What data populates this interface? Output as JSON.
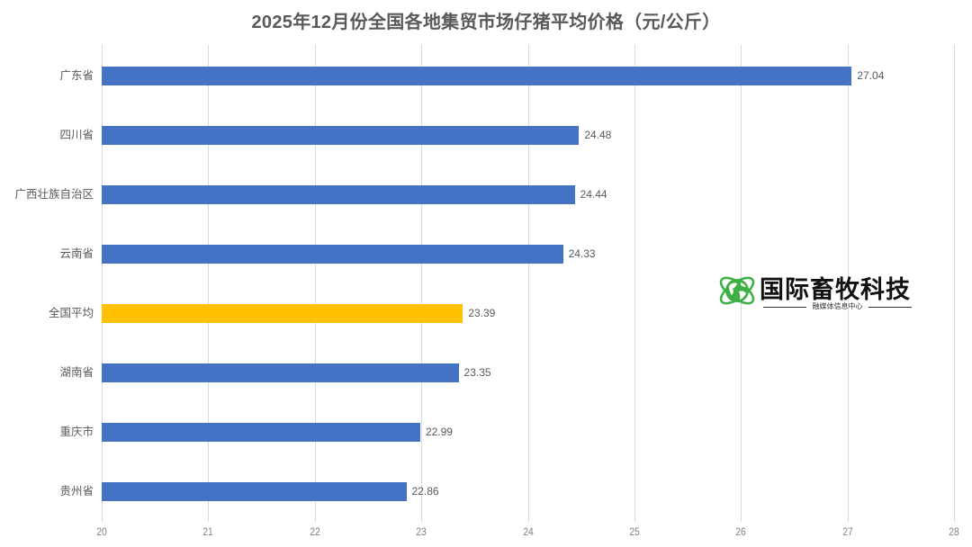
{
  "chart_data": {
    "type": "bar",
    "orientation": "horizontal",
    "title": "2025年12月份全国各地集贸市场仔猪平均价格（元/公斤）",
    "xlabel": "",
    "ylabel": "",
    "xlim": [
      20,
      28
    ],
    "xticks": [
      "20",
      "21",
      "22",
      "23",
      "24",
      "25",
      "26",
      "27",
      "28"
    ],
    "grid": "vertical",
    "legend": "none",
    "categories": [
      "广东省",
      "四川省",
      "广西壮族自治区",
      "云南省",
      "全国平均",
      "湖南省",
      "重庆市",
      "贵州省"
    ],
    "values": [
      27.04,
      24.48,
      24.44,
      24.33,
      23.39,
      23.35,
      22.99,
      22.86
    ],
    "value_labels": [
      "27.04",
      "24.48",
      "24.44",
      "24.33",
      "23.39",
      "23.35",
      "22.99",
      "22.86"
    ],
    "bar_colors": [
      "#4472c4",
      "#4472c4",
      "#4472c4",
      "#4472c4",
      "#ffc000",
      "#4472c4",
      "#4472c4",
      "#4472c4"
    ],
    "highlight_category": "全国平均"
  },
  "watermark": {
    "title": "国际畜牧科技",
    "subtitle": "融媒体信息中心",
    "icon": "globe-orbit-icon",
    "color": "#3cb043"
  }
}
